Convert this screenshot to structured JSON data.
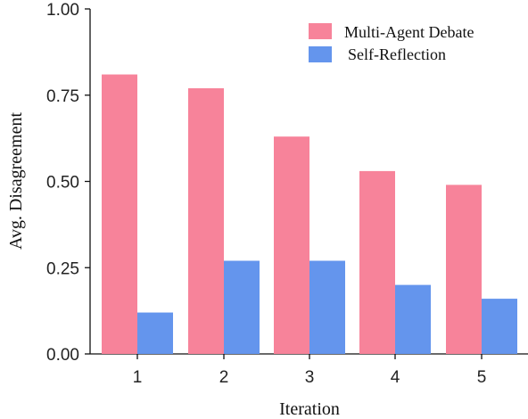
{
  "chart_data": {
    "type": "bar",
    "categories": [
      "1",
      "2",
      "3",
      "4",
      "5"
    ],
    "series": [
      {
        "name": "Multi-Agent Debate",
        "values": [
          0.81,
          0.77,
          0.63,
          0.53,
          0.49
        ]
      },
      {
        "name": "Self-Reflection",
        "values": [
          0.12,
          0.27,
          0.27,
          0.2,
          0.16
        ]
      }
    ],
    "xlabel": "Iteration",
    "ylabel": "Avg. Disagreement",
    "ylim": [
      0,
      1.0
    ],
    "yticks": [
      "0.00",
      "0.25",
      "0.50",
      "0.75",
      "1.00"
    ],
    "grid": false,
    "legend": "top-right",
    "colors": [
      "#f7839a",
      "#6495ed"
    ]
  }
}
